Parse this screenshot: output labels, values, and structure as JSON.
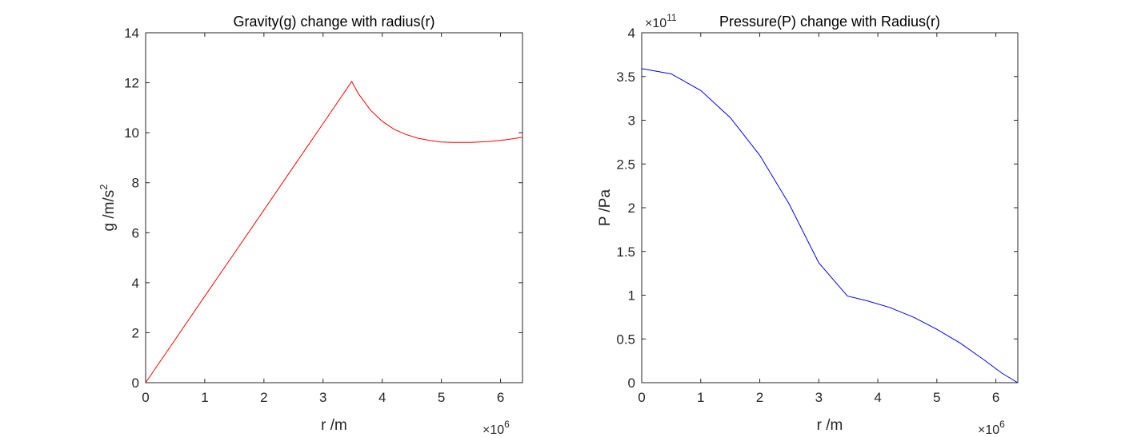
{
  "chart_data": [
    {
      "type": "line",
      "title": "Gravity(g) change with radius(r)",
      "xlabel": "r /m",
      "ylabel": "g /m/s",
      "ylabel_superscript": "2",
      "x_exponent_base": "×10",
      "x_exponent_power": "6",
      "x_scale": 1000000,
      "xlim": [
        0,
        6.371
      ],
      "ylim": [
        0,
        14
      ],
      "xticks": [
        0,
        1,
        2,
        3,
        4,
        5,
        6
      ],
      "xtick_labels": [
        "0",
        "1",
        "2",
        "3",
        "4",
        "5",
        "6"
      ],
      "yticks": [
        0,
        2,
        4,
        6,
        8,
        10,
        12,
        14
      ],
      "ytick_labels": [
        "0",
        "2",
        "4",
        "6",
        "8",
        "10",
        "12",
        "14"
      ],
      "grid": false,
      "color": "#ff0000",
      "series": [
        {
          "x": [
            0,
            0.5,
            1,
            1.5,
            2,
            2.5,
            3,
            3.485,
            3.6,
            3.8,
            4.0,
            4.2,
            4.4,
            4.6,
            4.8,
            5.0,
            5.2,
            5.5,
            5.8,
            6.1,
            6.371
          ],
          "y": [
            0,
            1.73,
            3.46,
            5.18,
            6.91,
            8.64,
            10.37,
            12.05,
            11.55,
            10.91,
            10.46,
            10.14,
            9.93,
            9.78,
            9.69,
            9.63,
            9.61,
            9.61,
            9.65,
            9.72,
            9.82
          ]
        }
      ]
    },
    {
      "type": "line",
      "title": "Pressure(P) change with Radius(r)",
      "xlabel": "r /m",
      "ylabel": "P /Pa",
      "x_exponent_base": "×10",
      "x_exponent_power": "6",
      "x_scale": 1000000,
      "y_exponent_base": "×10",
      "y_exponent_power": "11",
      "y_scale": 100000000000,
      "xlim": [
        0,
        6.371
      ],
      "ylim": [
        0,
        4
      ],
      "xticks": [
        0,
        1,
        2,
        3,
        4,
        5,
        6
      ],
      "xtick_labels": [
        "0",
        "1",
        "2",
        "3",
        "4",
        "5",
        "6"
      ],
      "yticks": [
        0,
        0.5,
        1,
        1.5,
        2,
        2.5,
        3,
        3.5,
        4
      ],
      "ytick_labels": [
        "0",
        "0.5",
        "1",
        "1.5",
        "2",
        "2.5",
        "3",
        "3.5",
        "4"
      ],
      "grid": false,
      "color": "#0000ff",
      "series": [
        {
          "x": [
            0,
            0.5,
            1,
            1.5,
            2,
            2.5,
            3,
            3.485,
            3.8,
            4.2,
            4.6,
            5.0,
            5.4,
            5.8,
            6.1,
            6.371
          ],
          "y": [
            3.59,
            3.53,
            3.34,
            3.03,
            2.6,
            2.04,
            1.37,
            0.99,
            0.94,
            0.86,
            0.75,
            0.61,
            0.45,
            0.26,
            0.11,
            0
          ]
        }
      ]
    }
  ]
}
